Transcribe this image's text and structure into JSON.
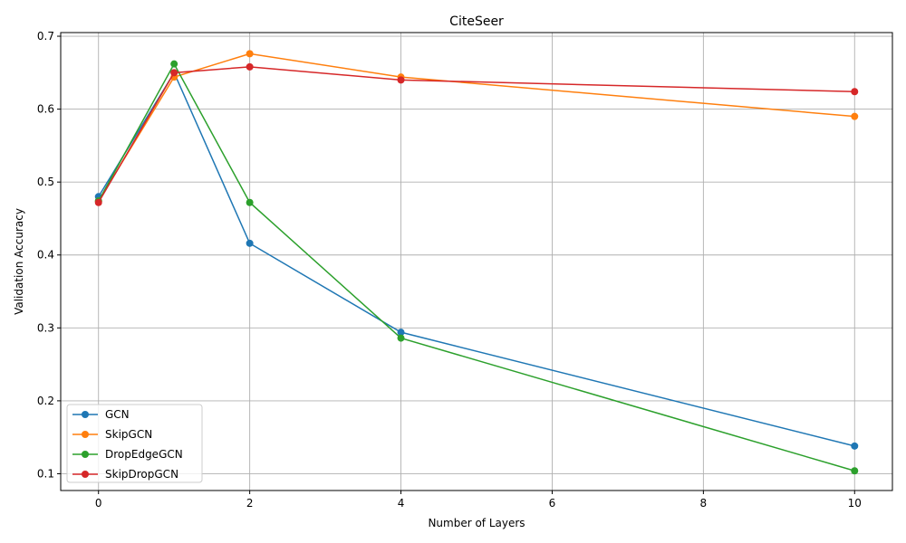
{
  "chart_data": {
    "type": "line",
    "title": "CiteSeer",
    "xlabel": "Number of Layers",
    "ylabel": "Validation Accuracy",
    "x": [
      0,
      1,
      2,
      4,
      10
    ],
    "xlim": [
      -0.5,
      10.5
    ],
    "ylim": [
      0.077,
      0.705
    ],
    "xticks": [
      0,
      2,
      4,
      6,
      8,
      10
    ],
    "yticks": [
      0.1,
      0.2,
      0.3,
      0.4,
      0.5,
      0.6,
      0.7
    ],
    "grid": true,
    "legend_position": "lower-left",
    "series": [
      {
        "name": "GCN",
        "color": "#1f77b4",
        "values": [
          0.48,
          0.65,
          0.416,
          0.294,
          0.138
        ]
      },
      {
        "name": "SkipGCN",
        "color": "#ff7f0e",
        "values": [
          0.474,
          0.644,
          0.676,
          0.644,
          0.59
        ]
      },
      {
        "name": "DropEdgeGCN",
        "color": "#2ca02c",
        "values": [
          0.474,
          0.662,
          0.472,
          0.286,
          0.104
        ]
      },
      {
        "name": "SkipDropGCN",
        "color": "#d62728",
        "values": [
          0.472,
          0.65,
          0.658,
          0.64,
          0.624
        ]
      }
    ]
  }
}
